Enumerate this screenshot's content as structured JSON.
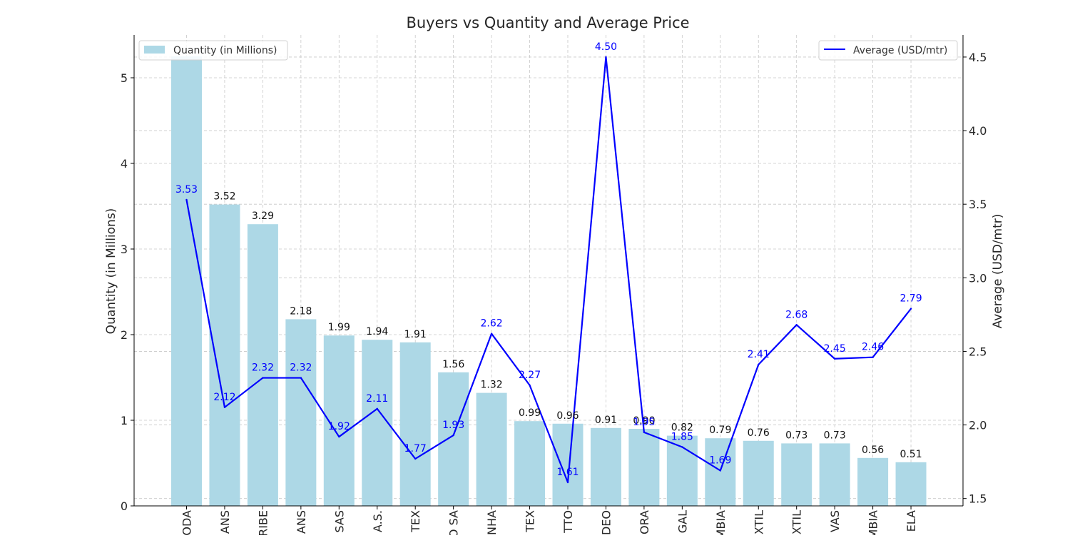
{
  "chart_data": {
    "type": "bar",
    "title": "Buyers vs Quantity and Average Price",
    "xlabel": "",
    "ylabel": "Quantity (in Millions)",
    "y2label": "Average (USD/mtr)",
    "categories": [
      "ODA",
      "ANS",
      "RIBE",
      "ANS",
      "SAS",
      "A.S.",
      "TEX",
      "O SA",
      "NHA",
      "TEX",
      "TTO",
      "DEO",
      "ORA",
      "GAL",
      "MBIA",
      "XTIL",
      "XTIL",
      "VAS",
      "MBIA",
      "ELA"
    ],
    "series": [
      {
        "name": "Quantity (in Millions)",
        "type": "bar",
        "axis": "left",
        "color": "#add8e6",
        "values": [
          5.3,
          3.52,
          3.29,
          2.18,
          1.99,
          1.94,
          1.91,
          1.56,
          1.32,
          0.99,
          0.96,
          0.91,
          0.9,
          0.82,
          0.79,
          0.76,
          0.73,
          0.73,
          0.56,
          0.51
        ],
        "labels": [
          "",
          "3.52",
          "3.29",
          "2.18",
          "1.99",
          "1.94",
          "1.91",
          "1.56",
          "1.32",
          "0.99",
          "0.96",
          "0.91",
          "0.90",
          "0.82",
          "0.79",
          "0.76",
          "0.73",
          "0.73",
          "0.56",
          "0.51"
        ]
      },
      {
        "name": "Average (USD/mtr)",
        "type": "line",
        "axis": "right",
        "color": "#0000ff",
        "values": [
          3.53,
          2.12,
          2.32,
          2.32,
          1.92,
          2.11,
          1.77,
          1.93,
          2.62,
          2.27,
          1.61,
          4.5,
          1.95,
          1.85,
          1.69,
          2.41,
          2.68,
          2.45,
          2.46,
          2.79
        ],
        "labels": [
          "3.53",
          "2.12",
          "2.32",
          "2.32",
          "1.92",
          "2.11",
          "1.77",
          "1.93",
          "2.62",
          "2.27",
          "1.61",
          "4.50",
          "1.95",
          "1.85",
          "1.69",
          "2.41",
          "2.68",
          "2.45",
          "2.46",
          "2.79"
        ]
      }
    ],
    "ylim": [
      0,
      5.5
    ],
    "y2lim": [
      1.45,
      4.65
    ],
    "yticks": [
      0,
      1,
      2,
      3,
      4,
      5
    ],
    "y2ticks": [
      1.5,
      2.0,
      2.5,
      3.0,
      3.5,
      4.0,
      4.5
    ],
    "yticklabels": [
      "0",
      "1",
      "2",
      "3",
      "4",
      "5"
    ],
    "y2ticklabels": [
      "1.5",
      "2.0",
      "2.5",
      "3.0",
      "3.5",
      "4.0",
      "4.5"
    ],
    "grid": true,
    "legend": [
      {
        "label": "Quantity (in Millions)",
        "placement": "top-left"
      },
      {
        "label": "Average (USD/mtr)",
        "placement": "top-right"
      }
    ]
  }
}
